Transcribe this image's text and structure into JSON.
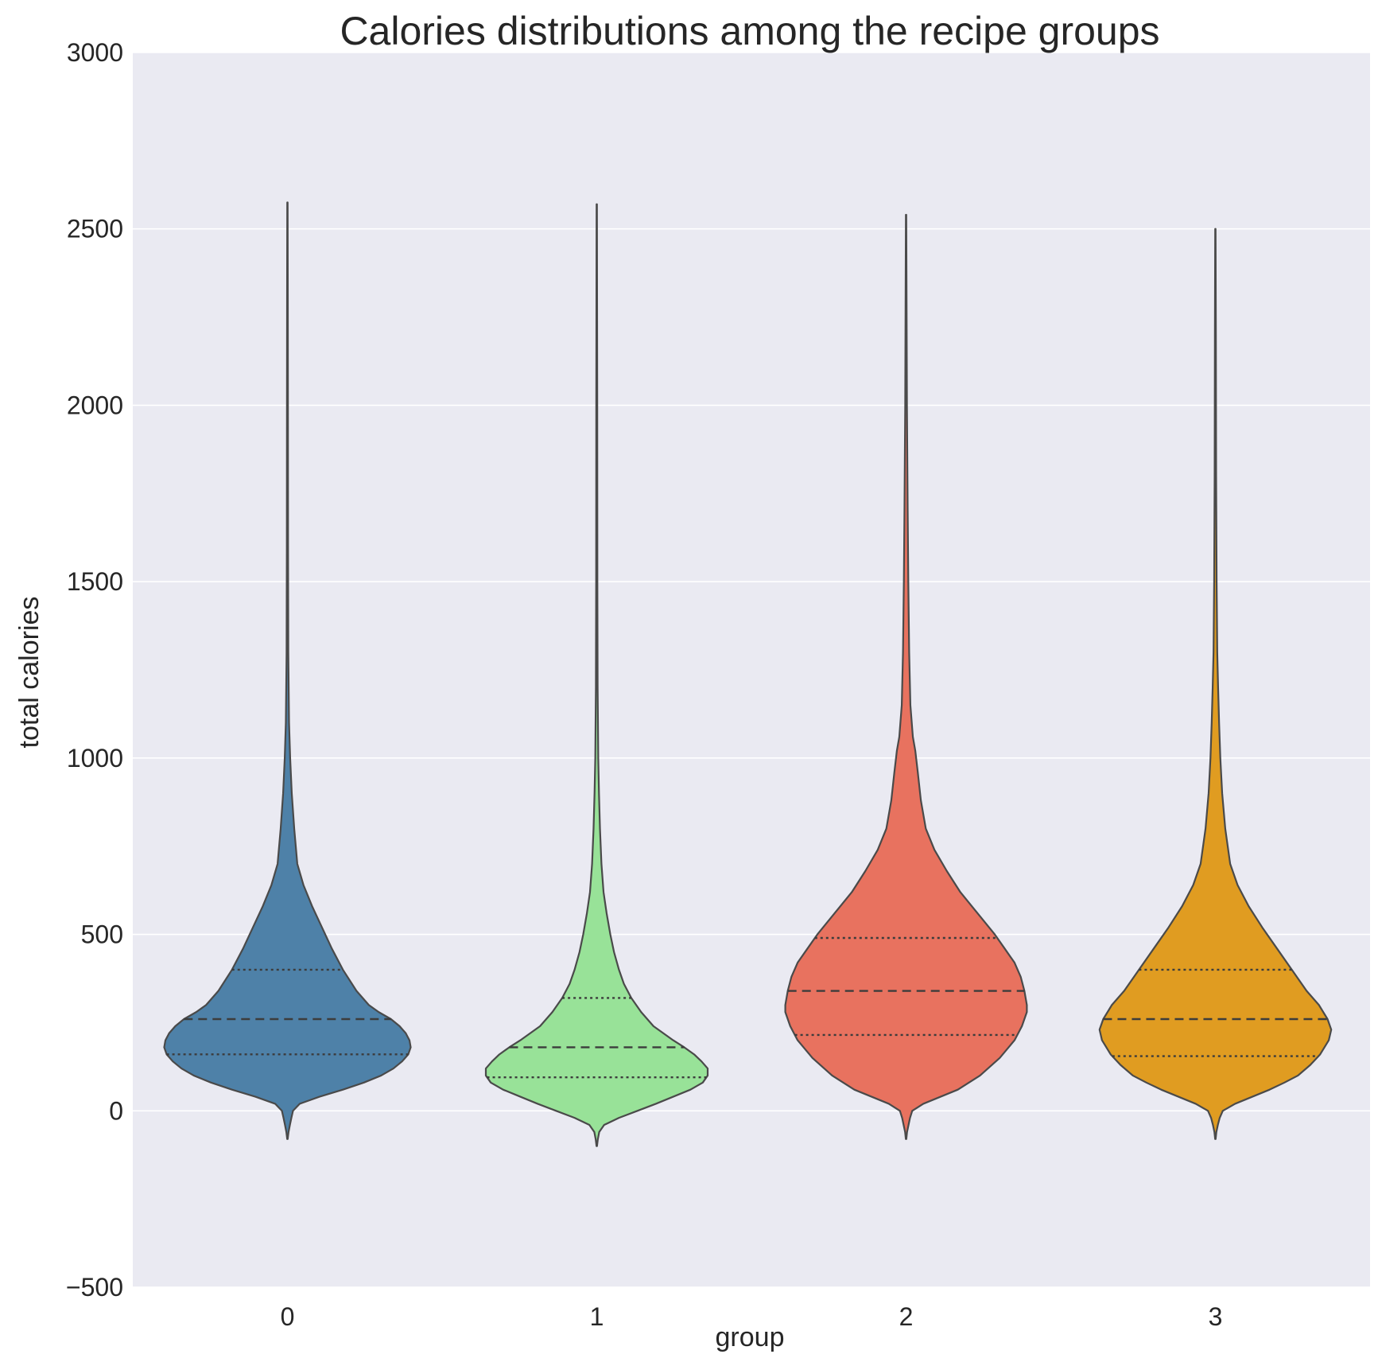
{
  "chart_data": {
    "type": "violin",
    "title": "Calories distributions among the recipe groups",
    "xlabel": "group",
    "ylabel": "total calories",
    "ylim": [
      -500,
      3000
    ],
    "yticks": [
      -500,
      0,
      500,
      1000,
      1500,
      2000,
      2500,
      3000
    ],
    "ytick_labels": [
      "−500",
      "0",
      "500",
      "1000",
      "1500",
      "2000",
      "2500",
      "3000"
    ],
    "categories": [
      "0",
      "1",
      "2",
      "3"
    ],
    "grid": true,
    "background": "#eaeaf2",
    "inner": "quartile",
    "series": [
      {
        "group": "0",
        "color": "#4e81a8",
        "min": -80,
        "max": 2575,
        "q1": 160,
        "median": 260,
        "q3": 400,
        "profile": [
          [
            -80,
            0.002
          ],
          [
            -60,
            0.009
          ],
          [
            -40,
            0.02
          ],
          [
            -20,
            0.032
          ],
          [
            0,
            0.045
          ],
          [
            20,
            0.1
          ],
          [
            40,
            0.26
          ],
          [
            60,
            0.45
          ],
          [
            80,
            0.62
          ],
          [
            100,
            0.76
          ],
          [
            120,
            0.86
          ],
          [
            140,
            0.93
          ],
          [
            160,
            0.98
          ],
          [
            180,
            1.0
          ],
          [
            200,
            0.99
          ],
          [
            220,
            0.96
          ],
          [
            240,
            0.91
          ],
          [
            260,
            0.84
          ],
          [
            280,
            0.74
          ],
          [
            300,
            0.66
          ],
          [
            340,
            0.56
          ],
          [
            400,
            0.45
          ],
          [
            460,
            0.36
          ],
          [
            520,
            0.28
          ],
          [
            580,
            0.2
          ],
          [
            640,
            0.13
          ],
          [
            700,
            0.08
          ],
          [
            800,
            0.055
          ],
          [
            900,
            0.035
          ],
          [
            1000,
            0.022
          ],
          [
            1100,
            0.013
          ],
          [
            1300,
            0.007
          ],
          [
            1600,
            0.005
          ],
          [
            2000,
            0.004
          ],
          [
            2300,
            0.003
          ],
          [
            2575,
            0.0015
          ]
        ]
      },
      {
        "group": "1",
        "color": "#98e298",
        "min": -100,
        "max": 2570,
        "q1": 95,
        "median": 180,
        "q3": 320,
        "profile": [
          [
            -100,
            0.002
          ],
          [
            -80,
            0.009
          ],
          [
            -60,
            0.02
          ],
          [
            -40,
            0.06
          ],
          [
            -20,
            0.18
          ],
          [
            0,
            0.33
          ],
          [
            20,
            0.48
          ],
          [
            40,
            0.62
          ],
          [
            60,
            0.76
          ],
          [
            80,
            0.86
          ],
          [
            100,
            0.9
          ],
          [
            120,
            0.9
          ],
          [
            140,
            0.85
          ],
          [
            160,
            0.79
          ],
          [
            180,
            0.71
          ],
          [
            200,
            0.62
          ],
          [
            240,
            0.46
          ],
          [
            280,
            0.36
          ],
          [
            320,
            0.28
          ],
          [
            360,
            0.22
          ],
          [
            400,
            0.18
          ],
          [
            450,
            0.14
          ],
          [
            500,
            0.11
          ],
          [
            560,
            0.08
          ],
          [
            620,
            0.055
          ],
          [
            700,
            0.038
          ],
          [
            800,
            0.026
          ],
          [
            900,
            0.018
          ],
          [
            1000,
            0.012
          ],
          [
            1200,
            0.007
          ],
          [
            1500,
            0.005
          ],
          [
            2000,
            0.004
          ],
          [
            2570,
            0.0015
          ]
        ]
      },
      {
        "group": "2",
        "color": "#e8725f",
        "min": -80,
        "max": 2540,
        "q1": 215,
        "median": 340,
        "q3": 490,
        "profile": [
          [
            -80,
            0.002
          ],
          [
            -60,
            0.008
          ],
          [
            -40,
            0.02
          ],
          [
            -20,
            0.032
          ],
          [
            0,
            0.05
          ],
          [
            20,
            0.14
          ],
          [
            40,
            0.28
          ],
          [
            60,
            0.42
          ],
          [
            100,
            0.6
          ],
          [
            150,
            0.76
          ],
          [
            200,
            0.88
          ],
          [
            240,
            0.94
          ],
          [
            280,
            0.98
          ],
          [
            300,
            0.98
          ],
          [
            340,
            0.96
          ],
          [
            380,
            0.93
          ],
          [
            420,
            0.88
          ],
          [
            460,
            0.8
          ],
          [
            500,
            0.72
          ],
          [
            560,
            0.58
          ],
          [
            620,
            0.44
          ],
          [
            680,
            0.33
          ],
          [
            740,
            0.23
          ],
          [
            800,
            0.16
          ],
          [
            880,
            0.12
          ],
          [
            960,
            0.095
          ],
          [
            1020,
            0.075
          ],
          [
            1060,
            0.055
          ],
          [
            1150,
            0.035
          ],
          [
            1300,
            0.025
          ],
          [
            1500,
            0.018
          ],
          [
            1700,
            0.013
          ],
          [
            2000,
            0.007
          ],
          [
            2300,
            0.004
          ],
          [
            2540,
            0.0015
          ]
        ]
      },
      {
        "group": "3",
        "color": "#e09c21",
        "min": -80,
        "max": 2500,
        "q1": 155,
        "median": 260,
        "q3": 400,
        "profile": [
          [
            -80,
            0.002
          ],
          [
            -60,
            0.008
          ],
          [
            -40,
            0.02
          ],
          [
            -20,
            0.035
          ],
          [
            0,
            0.06
          ],
          [
            20,
            0.16
          ],
          [
            40,
            0.3
          ],
          [
            60,
            0.44
          ],
          [
            80,
            0.56
          ],
          [
            100,
            0.67
          ],
          [
            130,
            0.77
          ],
          [
            160,
            0.85
          ],
          [
            200,
            0.92
          ],
          [
            230,
            0.94
          ],
          [
            260,
            0.91
          ],
          [
            300,
            0.84
          ],
          [
            340,
            0.74
          ],
          [
            400,
            0.62
          ],
          [
            460,
            0.5
          ],
          [
            520,
            0.38
          ],
          [
            580,
            0.27
          ],
          [
            640,
            0.18
          ],
          [
            700,
            0.12
          ],
          [
            800,
            0.08
          ],
          [
            900,
            0.055
          ],
          [
            1000,
            0.04
          ],
          [
            1100,
            0.03
          ],
          [
            1200,
            0.022
          ],
          [
            1300,
            0.015
          ],
          [
            1500,
            0.01
          ],
          [
            1800,
            0.006
          ],
          [
            2200,
            0.004
          ],
          [
            2500,
            0.0015
          ]
        ]
      }
    ]
  }
}
